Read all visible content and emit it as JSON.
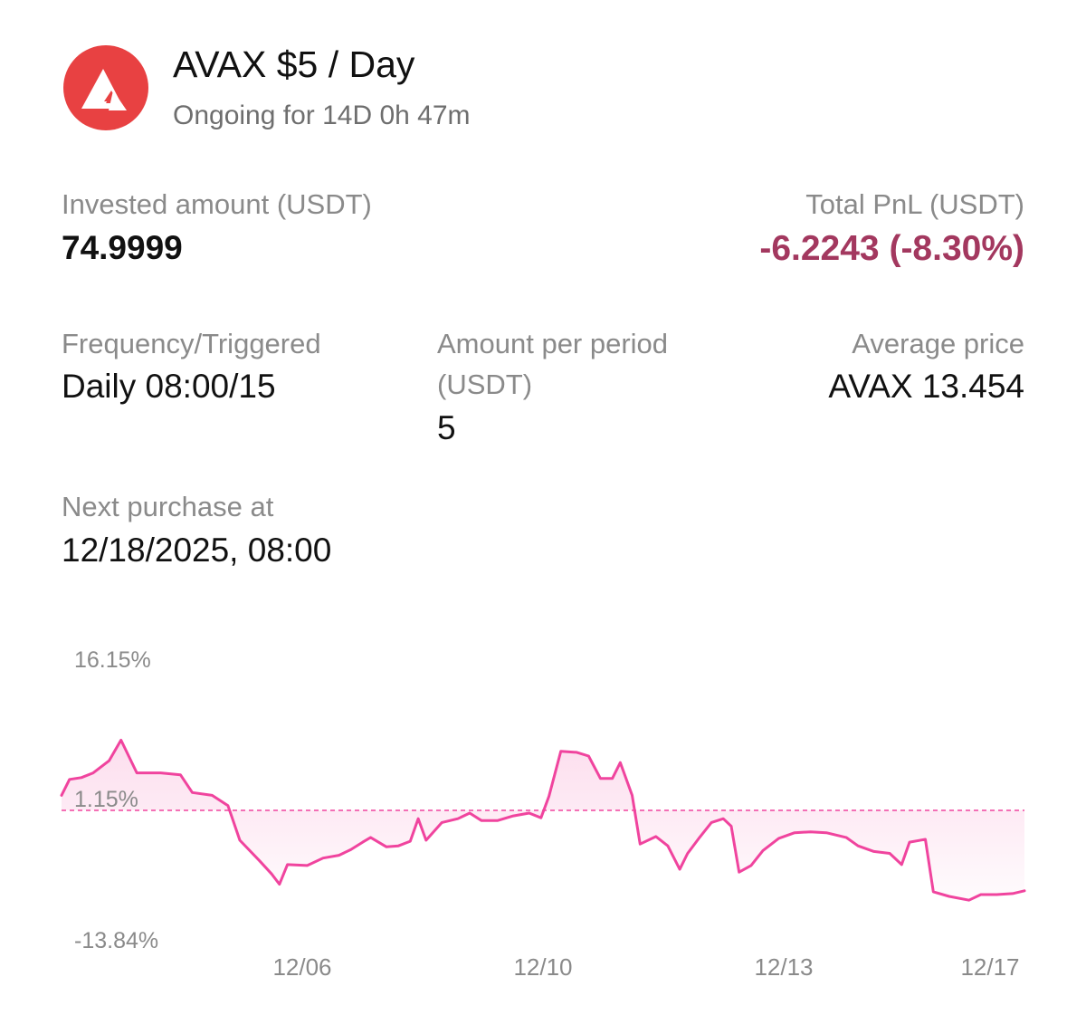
{
  "header": {
    "title": "AVAX $5 / Day",
    "subtitle": "Ongoing for 14D 0h 47m",
    "logo_icon": "avalanche-logo-icon",
    "logo_color": "#e84142"
  },
  "stats": {
    "invested_label": "Invested amount (USDT)",
    "invested_value": "74.9999",
    "pnl_label": "Total PnL (USDT)",
    "pnl_value": "-6.2243 (-8.30%)",
    "pnl_color": "#a3385f",
    "frequency_label": "Frequency/Triggered",
    "frequency_value": "Daily 08:00/15",
    "amount_label_line1": "Amount per period",
    "amount_label_line2": "(USDT)",
    "amount_value": "5",
    "avg_price_label": "Average price",
    "avg_price_value": "AVAX 13.454",
    "next_purchase_label": "Next purchase at",
    "next_purchase_value": "12/18/2025, 08:00"
  },
  "chart_data": {
    "type": "area",
    "line_color": "#f0449e",
    "y_tick_labels": [
      "16.15%",
      "1.15%",
      "-13.84%"
    ],
    "x_tick_labels": [
      "12/06",
      "12/10",
      "12/13",
      "12/17"
    ],
    "ylim": [
      -13.84,
      16.15
    ],
    "reference_line": 0,
    "grid": false,
    "series": [
      {
        "values": [
          [
            0,
            1.6
          ],
          [
            0.2,
            3.3
          ],
          [
            0.5,
            3.5
          ],
          [
            0.8,
            4.0
          ],
          [
            1.2,
            5.3
          ],
          [
            1.5,
            7.5
          ],
          [
            1.9,
            4.0
          ],
          [
            2.5,
            4.0
          ],
          [
            3.0,
            3.8
          ],
          [
            3.3,
            1.9
          ],
          [
            3.8,
            1.6
          ],
          [
            4.2,
            0.5
          ],
          [
            4.5,
            -3.2
          ],
          [
            5.0,
            -5.4
          ],
          [
            5.3,
            -6.8
          ],
          [
            5.5,
            -7.9
          ],
          [
            5.7,
            -5.8
          ],
          [
            6.2,
            -5.9
          ],
          [
            6.6,
            -5.1
          ],
          [
            7.0,
            -4.8
          ],
          [
            7.3,
            -4.2
          ],
          [
            7.6,
            -3.4
          ],
          [
            7.8,
            -2.9
          ],
          [
            8.2,
            -3.9
          ],
          [
            8.5,
            -3.8
          ],
          [
            8.8,
            -3.3
          ],
          [
            9.0,
            -0.9
          ],
          [
            9.2,
            -3.2
          ],
          [
            9.6,
            -1.3
          ],
          [
            10.0,
            -0.9
          ],
          [
            10.3,
            -0.3
          ],
          [
            10.6,
            -1.1
          ],
          [
            11.0,
            -1.1
          ],
          [
            11.4,
            -0.6
          ],
          [
            11.8,
            -0.3
          ],
          [
            12.1,
            -0.8
          ],
          [
            12.3,
            1.5
          ],
          [
            12.6,
            6.3
          ],
          [
            13.0,
            6.2
          ],
          [
            13.3,
            5.8
          ],
          [
            13.6,
            3.4
          ],
          [
            13.9,
            3.4
          ],
          [
            14.1,
            5.1
          ],
          [
            14.4,
            1.6
          ],
          [
            14.6,
            -3.6
          ],
          [
            15.0,
            -2.8
          ],
          [
            15.3,
            -3.8
          ],
          [
            15.6,
            -6.3
          ],
          [
            15.8,
            -4.6
          ],
          [
            16.1,
            -2.9
          ],
          [
            16.4,
            -1.3
          ],
          [
            16.7,
            -0.9
          ],
          [
            16.9,
            -1.7
          ],
          [
            17.1,
            -6.6
          ],
          [
            17.4,
            -5.9
          ],
          [
            17.7,
            -4.3
          ],
          [
            18.1,
            -3.0
          ],
          [
            18.5,
            -2.4
          ],
          [
            18.9,
            -2.3
          ],
          [
            19.3,
            -2.4
          ],
          [
            19.8,
            -2.9
          ],
          [
            20.1,
            -3.8
          ],
          [
            20.5,
            -4.4
          ],
          [
            20.9,
            -4.6
          ],
          [
            21.2,
            -5.8
          ],
          [
            21.4,
            -3.4
          ],
          [
            21.8,
            -3.1
          ],
          [
            22.0,
            -8.7
          ],
          [
            22.4,
            -9.2
          ],
          [
            22.9,
            -9.6
          ],
          [
            23.2,
            -9.0
          ],
          [
            23.6,
            -9.0
          ],
          [
            24.0,
            -8.9
          ],
          [
            24.3,
            -8.6
          ]
        ]
      }
    ]
  }
}
